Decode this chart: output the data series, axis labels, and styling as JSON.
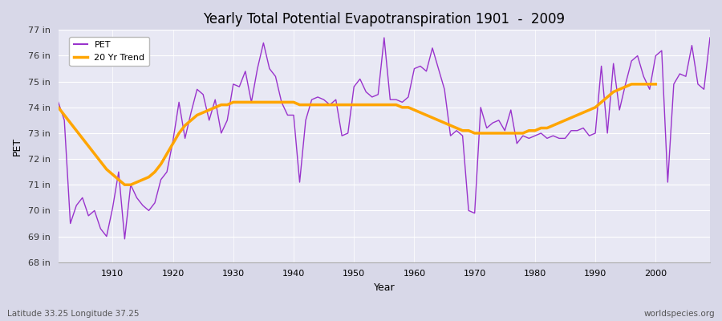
{
  "title": "Yearly Total Potential Evapotranspiration 1901  -  2009",
  "xlabel": "Year",
  "ylabel": "PET",
  "lat_label": "Latitude 33.25 Longitude 37.25",
  "watermark": "worldspecies.org",
  "pet_color": "#9933cc",
  "trend_color": "#FFA500",
  "fig_bg": "#d8d8e8",
  "plot_bg": "#e8e8f4",
  "ylim": [
    68,
    77
  ],
  "yticks": [
    68,
    69,
    70,
    71,
    72,
    73,
    74,
    75,
    76,
    77
  ],
  "xlim": [
    1901,
    2009
  ],
  "years": [
    1901,
    1902,
    1903,
    1904,
    1905,
    1906,
    1907,
    1908,
    1909,
    1910,
    1911,
    1912,
    1913,
    1914,
    1915,
    1916,
    1917,
    1918,
    1919,
    1920,
    1921,
    1922,
    1923,
    1924,
    1925,
    1926,
    1927,
    1928,
    1929,
    1930,
    1931,
    1932,
    1933,
    1934,
    1935,
    1936,
    1937,
    1938,
    1939,
    1940,
    1941,
    1942,
    1943,
    1944,
    1945,
    1946,
    1947,
    1948,
    1949,
    1950,
    1951,
    1952,
    1953,
    1954,
    1955,
    1956,
    1957,
    1958,
    1959,
    1960,
    1961,
    1962,
    1963,
    1964,
    1965,
    1966,
    1967,
    1968,
    1969,
    1970,
    1971,
    1972,
    1973,
    1974,
    1975,
    1976,
    1977,
    1978,
    1979,
    1980,
    1981,
    1982,
    1983,
    1984,
    1985,
    1986,
    1987,
    1988,
    1989,
    1990,
    1991,
    1992,
    1993,
    1994,
    1995,
    1996,
    1997,
    1998,
    1999,
    2000,
    2001,
    2002,
    2003,
    2004,
    2005,
    2006,
    2007,
    2008,
    2009
  ],
  "pet": [
    74.2,
    73.5,
    69.5,
    70.2,
    70.5,
    69.8,
    70.0,
    69.3,
    69.0,
    70.1,
    71.5,
    68.9,
    71.0,
    70.5,
    70.2,
    70.0,
    70.3,
    71.2,
    71.5,
    72.7,
    74.2,
    72.8,
    73.8,
    74.7,
    74.5,
    73.5,
    74.3,
    73.0,
    73.5,
    74.9,
    74.8,
    75.4,
    74.2,
    75.5,
    76.5,
    75.5,
    75.2,
    74.2,
    73.7,
    73.7,
    71.1,
    73.5,
    74.3,
    74.4,
    74.3,
    74.1,
    74.3,
    72.9,
    73.0,
    74.8,
    75.1,
    74.6,
    74.4,
    74.5,
    76.7,
    74.3,
    74.3,
    74.2,
    74.4,
    75.5,
    75.6,
    75.4,
    76.3,
    75.5,
    74.7,
    72.9,
    73.1,
    72.9,
    70.0,
    69.9,
    74.0,
    73.2,
    73.4,
    73.5,
    73.1,
    73.9,
    72.6,
    72.9,
    72.8,
    72.9,
    73.0,
    72.8,
    72.9,
    72.8,
    72.8,
    73.1,
    73.1,
    73.2,
    72.9,
    73.0,
    75.6,
    73.0,
    75.7,
    73.9,
    74.9,
    75.8,
    76.0,
    75.2,
    74.7,
    76.0,
    76.2,
    71.1,
    74.9,
    75.3,
    75.2,
    76.4,
    74.9,
    74.7,
    76.7
  ],
  "trend": [
    74.0,
    73.7,
    73.4,
    73.1,
    72.8,
    72.5,
    72.2,
    71.9,
    71.6,
    71.4,
    71.2,
    71.0,
    71.0,
    71.1,
    71.2,
    71.3,
    71.5,
    71.8,
    72.2,
    72.6,
    73.0,
    73.3,
    73.5,
    73.7,
    73.8,
    73.9,
    74.0,
    74.1,
    74.1,
    74.2,
    74.2,
    74.2,
    74.2,
    74.2,
    74.2,
    74.2,
    74.2,
    74.2,
    74.2,
    74.2,
    74.1,
    74.1,
    74.1,
    74.1,
    74.1,
    74.1,
    74.1,
    74.1,
    74.1,
    74.1,
    74.1,
    74.1,
    74.1,
    74.1,
    74.1,
    74.1,
    74.1,
    74.0,
    74.0,
    73.9,
    73.8,
    73.7,
    73.6,
    73.5,
    73.4,
    73.3,
    73.2,
    73.1,
    73.1,
    73.0,
    73.0,
    73.0,
    73.0,
    73.0,
    73.0,
    73.0,
    73.0,
    73.0,
    73.1,
    73.1,
    73.2,
    73.2,
    73.3,
    73.4,
    73.5,
    73.6,
    73.7,
    73.8,
    73.9,
    74.0,
    74.2,
    74.4,
    74.6,
    74.7,
    74.8,
    74.9,
    74.9,
    74.9,
    74.9,
    74.9,
    null,
    null,
    null,
    null,
    null,
    null,
    null,
    null,
    null
  ]
}
